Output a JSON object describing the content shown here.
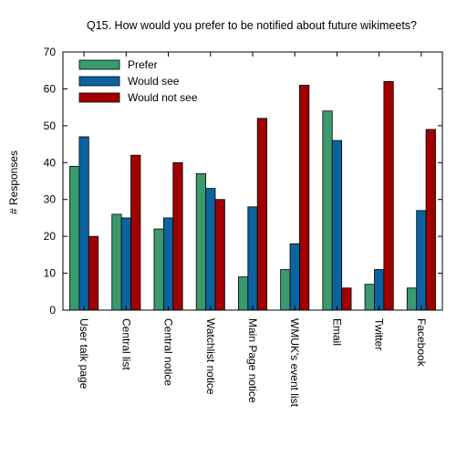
{
  "chart_data": {
    "type": "bar",
    "title": "Q15. How would you prefer to be notified about future wikimeets?",
    "xlabel": "",
    "ylabel": "# Responses",
    "ylim": [
      0,
      70
    ],
    "yticks": [
      0,
      10,
      20,
      30,
      40,
      50,
      60,
      70
    ],
    "grid": false,
    "legend_position": "top-left",
    "categories": [
      "User talk page",
      "Central list",
      "Central notice",
      "Watchlist notice",
      "Main Page notice",
      "WMUK's event list",
      "Email",
      "Twitter",
      "Facebook"
    ],
    "series": [
      {
        "name": "Prefer",
        "color": "#3a9a6e",
        "values": [
          39,
          26,
          22,
          37,
          9,
          11,
          54,
          7,
          6
        ]
      },
      {
        "name": "Would see",
        "color": "#0b63a0",
        "values": [
          47,
          25,
          25,
          33,
          28,
          18,
          46,
          11,
          27
        ]
      },
      {
        "name": "Would not see",
        "color": "#a00000",
        "values": [
          20,
          42,
          40,
          30,
          52,
          61,
          6,
          62,
          49
        ]
      }
    ]
  }
}
